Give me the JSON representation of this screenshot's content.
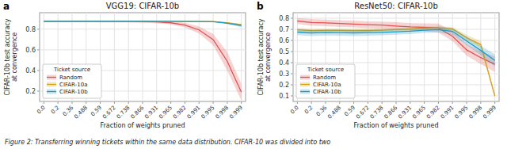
{
  "chart_data": [
    {
      "type": "line",
      "panel_label": "a",
      "title": "VGG19: CIFAR-10b",
      "x_label": "Fraction of weights pruned",
      "y_label": "CIFAR-10b test accuracy\nat convergence",
      "categories": [
        "0.0",
        "0.2",
        "0.36",
        "0.488",
        "0.59",
        "0.672",
        "0.738",
        "0.866",
        "0.931",
        "0.965",
        "0.982",
        "0.991",
        "0.995",
        "0.998",
        "0.999"
      ],
      "ylim": [
        0.1,
        0.96
      ],
      "yticks": [
        0.2,
        0.4,
        0.6,
        0.8
      ],
      "grid": true,
      "legend": "lower left",
      "legend_title": "Ticket source",
      "series": [
        {
          "name": "Random",
          "color": "#e05252",
          "values": [
            0.877,
            0.877,
            0.876,
            0.876,
            0.876,
            0.876,
            0.875,
            0.874,
            0.871,
            0.862,
            0.84,
            0.793,
            0.7,
            0.49,
            0.19
          ],
          "lower": [
            0.868,
            0.868,
            0.867,
            0.867,
            0.866,
            0.866,
            0.865,
            0.863,
            0.858,
            0.846,
            0.818,
            0.758,
            0.645,
            0.4,
            0.11
          ],
          "upper": [
            0.886,
            0.886,
            0.885,
            0.885,
            0.886,
            0.886,
            0.885,
            0.885,
            0.884,
            0.878,
            0.862,
            0.828,
            0.755,
            0.58,
            0.27
          ]
        },
        {
          "name": "CIFAR-10a",
          "color": "#d4a017",
          "values": [
            0.877,
            0.877,
            0.877,
            0.877,
            0.877,
            0.877,
            0.877,
            0.877,
            0.877,
            0.877,
            0.876,
            0.875,
            0.874,
            0.862,
            0.843
          ],
          "lower": [
            0.875,
            0.875,
            0.875,
            0.875,
            0.875,
            0.875,
            0.875,
            0.875,
            0.875,
            0.875,
            0.874,
            0.873,
            0.872,
            0.858,
            0.838
          ],
          "upper": [
            0.879,
            0.879,
            0.879,
            0.879,
            0.879,
            0.879,
            0.879,
            0.879,
            0.879,
            0.879,
            0.878,
            0.877,
            0.876,
            0.866,
            0.848
          ]
        },
        {
          "name": "CIFAR-10b",
          "color": "#1f9ac9",
          "values": [
            0.876,
            0.876,
            0.876,
            0.876,
            0.877,
            0.877,
            0.877,
            0.876,
            0.876,
            0.876,
            0.875,
            0.874,
            0.873,
            0.858,
            0.835
          ],
          "lower": [
            0.874,
            0.874,
            0.874,
            0.874,
            0.875,
            0.875,
            0.875,
            0.874,
            0.874,
            0.874,
            0.873,
            0.872,
            0.87,
            0.852,
            0.82
          ],
          "upper": [
            0.878,
            0.878,
            0.878,
            0.878,
            0.879,
            0.879,
            0.879,
            0.878,
            0.878,
            0.878,
            0.877,
            0.876,
            0.876,
            0.864,
            0.85
          ]
        }
      ]
    },
    {
      "type": "line",
      "panel_label": "b",
      "title": "ResNet50: CIFAR-10b",
      "x_label": "Fraction of weights pruned",
      "y_label": "CIFAR-10b test accuracy\nat convergence",
      "categories": [
        "0.0",
        "0.2",
        "0.36",
        "0.488",
        "0.59",
        "0.672",
        "0.738",
        "0.866",
        "0.931",
        "0.965",
        "0.982",
        "0.991",
        "0.995",
        "0.998",
        "0.999"
      ],
      "ylim": [
        0.05,
        0.85
      ],
      "yticks": [
        0.1,
        0.2,
        0.3,
        0.4,
        0.5,
        0.6,
        0.7,
        0.8
      ],
      "grid": true,
      "legend": "lower left",
      "legend_title": "Ticket source",
      "series": [
        {
          "name": "Random",
          "color": "#e05252",
          "values": [
            0.775,
            0.762,
            0.758,
            0.752,
            0.748,
            0.742,
            0.738,
            0.73,
            0.722,
            0.718,
            0.712,
            0.638,
            0.515,
            0.445,
            0.385
          ],
          "lower": [
            0.748,
            0.732,
            0.728,
            0.722,
            0.718,
            0.71,
            0.706,
            0.695,
            0.688,
            0.682,
            0.672,
            0.592,
            0.462,
            0.388,
            0.315
          ],
          "upper": [
            0.802,
            0.792,
            0.788,
            0.782,
            0.778,
            0.772,
            0.77,
            0.765,
            0.756,
            0.754,
            0.752,
            0.684,
            0.568,
            0.502,
            0.455
          ]
        },
        {
          "name": "CIFAR-10a",
          "color": "#d4a017",
          "values": [
            0.695,
            0.688,
            0.69,
            0.69,
            0.688,
            0.689,
            0.692,
            0.697,
            0.703,
            0.71,
            0.714,
            0.702,
            0.625,
            0.562,
            0.1
          ],
          "lower": [
            0.68,
            0.672,
            0.675,
            0.675,
            0.672,
            0.673,
            0.677,
            0.682,
            0.688,
            0.695,
            0.698,
            0.684,
            0.6,
            0.532,
            0.085
          ],
          "upper": [
            0.71,
            0.704,
            0.705,
            0.705,
            0.704,
            0.705,
            0.707,
            0.712,
            0.718,
            0.725,
            0.73,
            0.72,
            0.65,
            0.592,
            0.115
          ]
        },
        {
          "name": "CIFAR-10b",
          "color": "#1f9ac9",
          "values": [
            0.675,
            0.668,
            0.672,
            0.67,
            0.668,
            0.67,
            0.673,
            0.678,
            0.683,
            0.692,
            0.698,
            0.682,
            0.595,
            0.51,
            0.42
          ],
          "lower": [
            0.648,
            0.64,
            0.645,
            0.642,
            0.64,
            0.642,
            0.646,
            0.652,
            0.658,
            0.668,
            0.672,
            0.652,
            0.558,
            0.468,
            0.365
          ],
          "upper": [
            0.702,
            0.696,
            0.699,
            0.698,
            0.696,
            0.698,
            0.7,
            0.704,
            0.708,
            0.716,
            0.724,
            0.712,
            0.632,
            0.552,
            0.475
          ]
        }
      ]
    }
  ],
  "caption": "Figure 2: Transferring winning tickets within the same data distribution. CIFAR-10 was divided into two"
}
